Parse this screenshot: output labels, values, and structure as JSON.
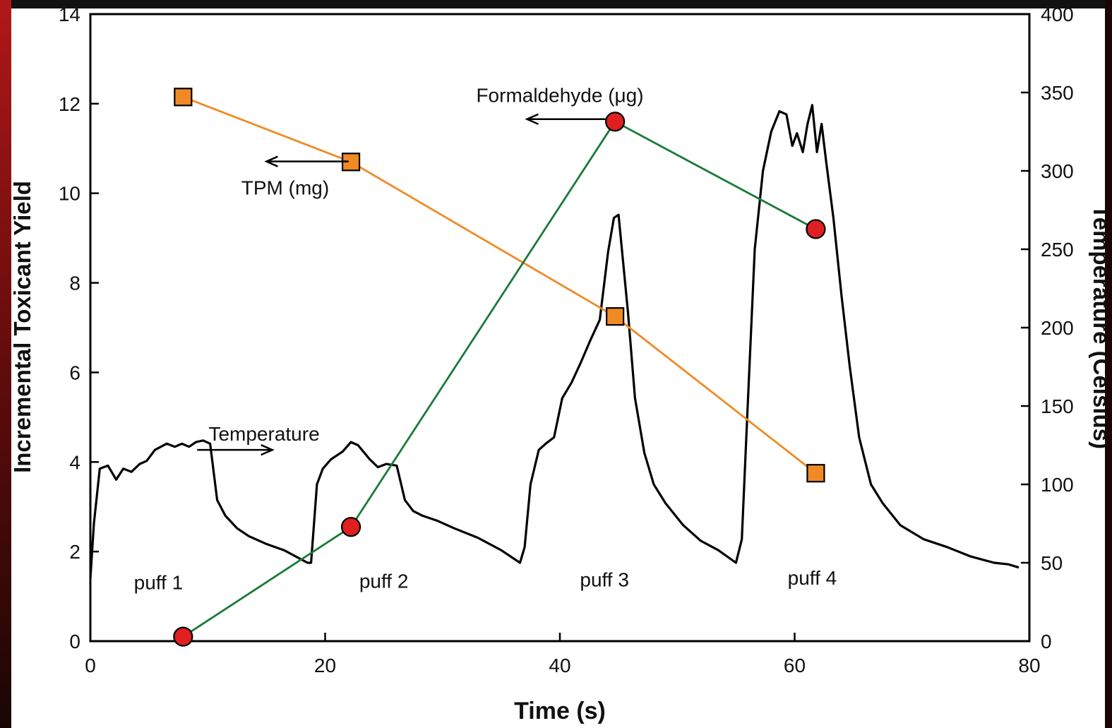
{
  "chart_data": {
    "type": "line",
    "title": "",
    "xlabel": "Time (s)",
    "ylabel_left": "Incremental Toxicant Yield",
    "ylabel_right": "Temperature (Celsius)",
    "xlim": [
      0,
      80
    ],
    "ylim_left": [
      0,
      14
    ],
    "ylim_right": [
      0,
      400
    ],
    "x_ticks": [
      "0",
      "20",
      "40",
      "60",
      "80"
    ],
    "y_left_ticks": [
      "0",
      "2",
      "4",
      "6",
      "8",
      "10",
      "12",
      "14"
    ],
    "y_right_ticks": [
      "0",
      "50",
      "100",
      "150",
      "200",
      "250",
      "300",
      "350",
      "400"
    ],
    "grid": false,
    "series": [
      {
        "name": "Formaldehyde (μg)",
        "axis": "left",
        "color": "#1a7a3a",
        "marker": "circle",
        "marker_color": "#e02020",
        "points": [
          [
            7.9,
            0.1
          ],
          [
            22.2,
            2.55
          ],
          [
            44.7,
            11.6
          ],
          [
            61.8,
            9.2
          ]
        ]
      },
      {
        "name": "TPM (mg)",
        "axis": "left",
        "color": "#f08a24",
        "marker": "square",
        "marker_color": "#f08a24",
        "points": [
          [
            7.9,
            12.15
          ],
          [
            22.2,
            10.7
          ],
          [
            44.7,
            7.25
          ],
          [
            61.8,
            3.75
          ]
        ]
      },
      {
        "name": "Temperature",
        "axis": "right",
        "color": "#000000",
        "points": [
          [
            0,
            40
          ],
          [
            0.3,
            75
          ],
          [
            0.8,
            110
          ],
          [
            1.5,
            112
          ],
          [
            2.2,
            103
          ],
          [
            2.8,
            110
          ],
          [
            3.5,
            108
          ],
          [
            4.2,
            113
          ],
          [
            4.8,
            115
          ],
          [
            5.5,
            122
          ],
          [
            6.5,
            126
          ],
          [
            7.2,
            124
          ],
          [
            7.8,
            126
          ],
          [
            8.4,
            124
          ],
          [
            9.0,
            127
          ],
          [
            9.6,
            128
          ],
          [
            10.2,
            126
          ],
          [
            10.8,
            90
          ],
          [
            11.5,
            80
          ],
          [
            12.5,
            72
          ],
          [
            13.5,
            67
          ],
          [
            15,
            62
          ],
          [
            16.5,
            58
          ],
          [
            18.5,
            50
          ],
          [
            18.8,
            50
          ],
          [
            19.3,
            100
          ],
          [
            19.8,
            110
          ],
          [
            20.5,
            116
          ],
          [
            21.5,
            121
          ],
          [
            22.2,
            127
          ],
          [
            22.8,
            125
          ],
          [
            23.8,
            116
          ],
          [
            24.5,
            111
          ],
          [
            25.2,
            113
          ],
          [
            26.1,
            112
          ],
          [
            26.8,
            90
          ],
          [
            27.5,
            83
          ],
          [
            28.3,
            80
          ],
          [
            29.5,
            77
          ],
          [
            31,
            72
          ],
          [
            33,
            66
          ],
          [
            35,
            58
          ],
          [
            36.6,
            50
          ],
          [
            37,
            60
          ],
          [
            37.5,
            100
          ],
          [
            38.2,
            122
          ],
          [
            38.8,
            126
          ],
          [
            39.5,
            130
          ],
          [
            40.2,
            155
          ],
          [
            41,
            165
          ],
          [
            41.8,
            178
          ],
          [
            42.6,
            192
          ],
          [
            43.4,
            205
          ],
          [
            44.1,
            248
          ],
          [
            44.6,
            270
          ],
          [
            45.0,
            272
          ],
          [
            45.8,
            210
          ],
          [
            46.4,
            155
          ],
          [
            47.2,
            120
          ],
          [
            48,
            100
          ],
          [
            49,
            88
          ],
          [
            50.5,
            74
          ],
          [
            52,
            64
          ],
          [
            53.5,
            58
          ],
          [
            55,
            50
          ],
          [
            55.5,
            65
          ],
          [
            56.0,
            150
          ],
          [
            56.6,
            250
          ],
          [
            57.3,
            300
          ],
          [
            58.0,
            325
          ],
          [
            58.7,
            338
          ],
          [
            59.3,
            336
          ],
          [
            59.8,
            316
          ],
          [
            60.2,
            324
          ],
          [
            60.7,
            312
          ],
          [
            61.1,
            330
          ],
          [
            61.5,
            342
          ],
          [
            61.9,
            312
          ],
          [
            62.3,
            330
          ],
          [
            62.7,
            305
          ],
          [
            63.3,
            270
          ],
          [
            64.0,
            220
          ],
          [
            64.7,
            175
          ],
          [
            65.5,
            130
          ],
          [
            66.5,
            100
          ],
          [
            67.5,
            88
          ],
          [
            69,
            74
          ],
          [
            71,
            65
          ],
          [
            73,
            60
          ],
          [
            75,
            54
          ],
          [
            77,
            50
          ],
          [
            78.2,
            49
          ],
          [
            79.1,
            47
          ]
        ]
      }
    ],
    "annotations": [
      {
        "text": "puff 1",
        "x": 5.8,
        "y_right": 33
      },
      {
        "text": "puff 2",
        "x": 25.0,
        "y_right": 34
      },
      {
        "text": "puff 3",
        "x": 43.8,
        "y_right": 35
      },
      {
        "text": "puff 4",
        "x": 61.5,
        "y_right": 36
      },
      {
        "text": "Temperature",
        "x": 14.8,
        "y_right": 128
      },
      {
        "text": "Formaldehyde (μg)",
        "x": 40.0,
        "y_right": 344
      },
      {
        "text": "TPM (mg)",
        "x": 16.6,
        "y_right": 285
      }
    ],
    "arrows": [
      {
        "from": [
          9.1,
          122
        ],
        "to": [
          15.5,
          122
        ],
        "axis": "right"
      },
      {
        "from": [
          44.0,
          333
        ],
        "to": [
          37.2,
          333
        ],
        "axis": "right"
      },
      {
        "from": [
          22.0,
          306
        ],
        "to": [
          15.0,
          306
        ],
        "axis": "right"
      }
    ]
  }
}
